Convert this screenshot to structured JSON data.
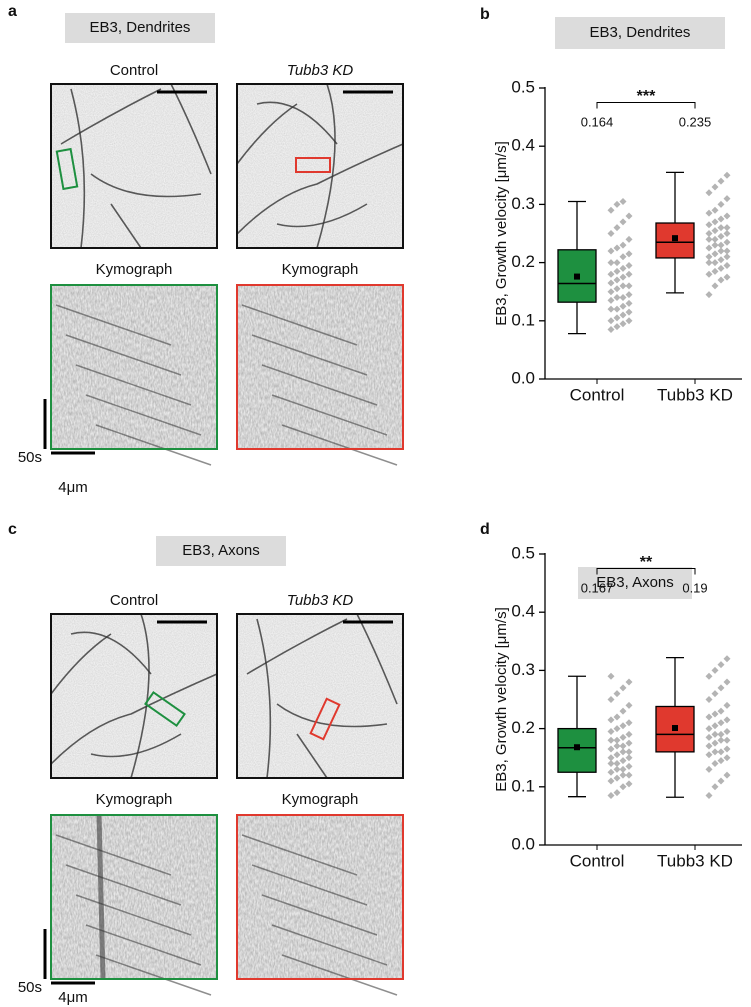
{
  "panels": [
    {
      "label": "a",
      "title": "EB3, Dendrites",
      "images": [
        {
          "title": "Control",
          "kymograph": "Kymograph"
        },
        {
          "title": "Tubb3 KD",
          "kymograph": "Kymograph"
        }
      ],
      "time_scale": "50s",
      "length_scale": "4μm"
    },
    {
      "label": "c",
      "title": "EB3, Axons",
      "images": [
        {
          "title": "Control",
          "kymograph": "Kymograph"
        },
        {
          "title": "Tubb3 KD",
          "kymograph": "Kymograph"
        }
      ],
      "time_scale": "50s",
      "length_scale": "4μm"
    }
  ],
  "chart_data": [
    {
      "type": "box",
      "panel_label": "b",
      "title": "EB3, Dendrites",
      "ylabel": "EB3, Growth velocity [μm/s]",
      "categories": [
        "Control",
        "Tubb3 KD"
      ],
      "ylim": [
        0,
        0.5
      ],
      "yticks": [
        {
          "value": 0,
          "label": "0.0"
        },
        0.1,
        0.2,
        0.3,
        0.4,
        0.5
      ],
      "significance": "***",
      "boxes": [
        {
          "color": "#1e9040",
          "min": 0.078,
          "q1": 0.132,
          "median": 0.164,
          "q3": 0.222,
          "max": 0.305,
          "mean": 0.176,
          "points": [
            0.085,
            0.09,
            0.095,
            0.1,
            0.1,
            0.105,
            0.11,
            0.115,
            0.12,
            0.12,
            0.125,
            0.13,
            0.135,
            0.14,
            0.14,
            0.145,
            0.15,
            0.155,
            0.16,
            0.16,
            0.165,
            0.17,
            0.175,
            0.18,
            0.18,
            0.185,
            0.19,
            0.195,
            0.2,
            0.2,
            0.21,
            0.215,
            0.22,
            0.225,
            0.23,
            0.24,
            0.25,
            0.26,
            0.27,
            0.28,
            0.29,
            0.3,
            0.305
          ]
        },
        {
          "color": "#e0392e",
          "min": 0.148,
          "q1": 0.208,
          "median": 0.235,
          "q3": 0.268,
          "max": 0.355,
          "mean": 0.242,
          "points": [
            0.145,
            0.16,
            0.17,
            0.175,
            0.18,
            0.185,
            0.19,
            0.195,
            0.2,
            0.2,
            0.205,
            0.21,
            0.21,
            0.215,
            0.22,
            0.22,
            0.225,
            0.23,
            0.23,
            0.235,
            0.24,
            0.24,
            0.245,
            0.25,
            0.25,
            0.255,
            0.26,
            0.26,
            0.265,
            0.27,
            0.275,
            0.28,
            0.285,
            0.29,
            0.3,
            0.31,
            0.32,
            0.33,
            0.34,
            0.35
          ]
        }
      ]
    },
    {
      "type": "box",
      "panel_label": "d",
      "title": "EB3, Axons",
      "ylabel": "EB3, Growth velocity [μm/s]",
      "categories": [
        "Control",
        "Tubb3 KD"
      ],
      "ylim": [
        0,
        0.5
      ],
      "yticks": [
        {
          "value": 0,
          "label": "0.0"
        },
        0.1,
        0.2,
        0.3,
        0.4,
        0.5
      ],
      "significance": "**",
      "boxes": [
        {
          "color": "#1e9040",
          "min": 0.083,
          "q1": 0.125,
          "median": 0.167,
          "q3": 0.2,
          "max": 0.29,
          "mean": 0.168,
          "points": [
            0.085,
            0.09,
            0.1,
            0.105,
            0.11,
            0.115,
            0.12,
            0.12,
            0.125,
            0.13,
            0.13,
            0.135,
            0.14,
            0.14,
            0.145,
            0.15,
            0.15,
            0.155,
            0.16,
            0.16,
            0.165,
            0.17,
            0.17,
            0.175,
            0.18,
            0.18,
            0.185,
            0.19,
            0.195,
            0.2,
            0.205,
            0.21,
            0.215,
            0.22,
            0.23,
            0.24,
            0.25,
            0.26,
            0.27,
            0.28,
            0.29
          ]
        },
        {
          "color": "#e0392e",
          "min": 0.082,
          "q1": 0.16,
          "median": 0.19,
          "q3": 0.238,
          "max": 0.322,
          "mean": 0.201,
          "points": [
            0.085,
            0.1,
            0.11,
            0.12,
            0.13,
            0.14,
            0.145,
            0.15,
            0.155,
            0.16,
            0.16,
            0.165,
            0.17,
            0.175,
            0.18,
            0.18,
            0.185,
            0.19,
            0.19,
            0.195,
            0.2,
            0.205,
            0.21,
            0.215,
            0.22,
            0.225,
            0.23,
            0.24,
            0.25,
            0.26,
            0.27,
            0.28,
            0.29,
            0.3,
            0.31,
            0.32
          ]
        }
      ]
    }
  ]
}
